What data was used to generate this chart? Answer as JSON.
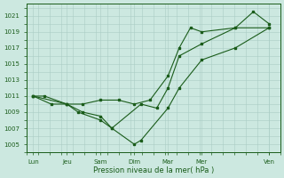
{
  "bg_color": "#cce8e0",
  "grid_color": "#aaccC4",
  "line_color": "#1a5c1a",
  "xlabel": "Pression niveau de la mer( hPa )",
  "ylim": [
    1004.5,
    1022.5
  ],
  "yticks": [
    1005,
    1007,
    1009,
    1011,
    1013,
    1015,
    1017,
    1019,
    1021
  ],
  "xtick_labels": [
    "Lun",
    "Jeu",
    "Sam",
    "Dim",
    "Mar",
    "Mer",
    "Ven"
  ],
  "xtick_positions": [
    0,
    1.5,
    3.0,
    4.5,
    6.0,
    7.5,
    10.5
  ],
  "xlim": [
    -0.3,
    11.0
  ],
  "line1": {
    "x": [
      0,
      0.5,
      1.5,
      2.0,
      3.0,
      3.5,
      4.5,
      4.8,
      6.0,
      6.5,
      7.5,
      9.0,
      10.5
    ],
    "y": [
      1011,
      1011,
      1010,
      1009,
      1008,
      1007,
      1005,
      1005.5,
      1009.5,
      1012,
      1015.5,
      1017,
      1019.5
    ]
  },
  "line2": {
    "x": [
      0,
      0.8,
      1.5,
      2.2,
      3.0,
      3.5,
      4.8,
      5.5,
      6.0,
      6.5,
      7.5,
      9.0,
      9.8,
      10.5
    ],
    "y": [
      1011,
      1010,
      1010,
      1009,
      1008.5,
      1007,
      1010,
      1009.5,
      1012,
      1016,
      1017.5,
      1019.5,
      1021.5,
      1020
    ]
  },
  "line3": {
    "x": [
      0,
      1.5,
      2.2,
      3.0,
      3.8,
      4.5,
      5.2,
      6.0,
      6.5,
      7.0,
      7.5,
      9.0,
      10.5
    ],
    "y": [
      1011,
      1010,
      1010,
      1010.5,
      1010.5,
      1010,
      1010.5,
      1013.5,
      1017,
      1019.5,
      1019,
      1019.5,
      1019.5
    ]
  }
}
